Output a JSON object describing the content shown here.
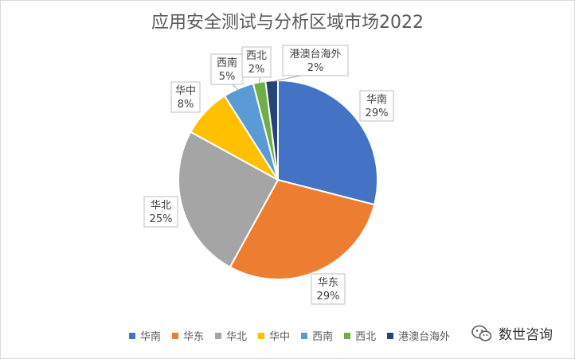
{
  "chart_data": {
    "type": "pie",
    "title": "应用安全测试与分析区域市场2022",
    "slices": [
      {
        "label": "华南",
        "value": 29,
        "display": "29%",
        "color": "#4472c4"
      },
      {
        "label": "华东",
        "value": 29,
        "display": "29%",
        "color": "#ed7d31"
      },
      {
        "label": "华北",
        "value": 25,
        "display": "25%",
        "color": "#a5a5a5"
      },
      {
        "label": "华中",
        "value": 8,
        "display": "8%",
        "color": "#ffc000"
      },
      {
        "label": "西南",
        "value": 5,
        "display": "5%",
        "color": "#5b9bd5"
      },
      {
        "label": "西北",
        "value": 2,
        "display": "2%",
        "color": "#70ad47"
      },
      {
        "label": "港澳台海外",
        "value": 2,
        "display": "2%",
        "color": "#264478"
      }
    ],
    "start_angle_deg": 0,
    "direction": "clockwise",
    "legend_position": "bottom",
    "data_labels": "category-and-percent-callouts"
  },
  "watermark": {
    "text": "数世咨询",
    "icon": "wechat-icon"
  }
}
